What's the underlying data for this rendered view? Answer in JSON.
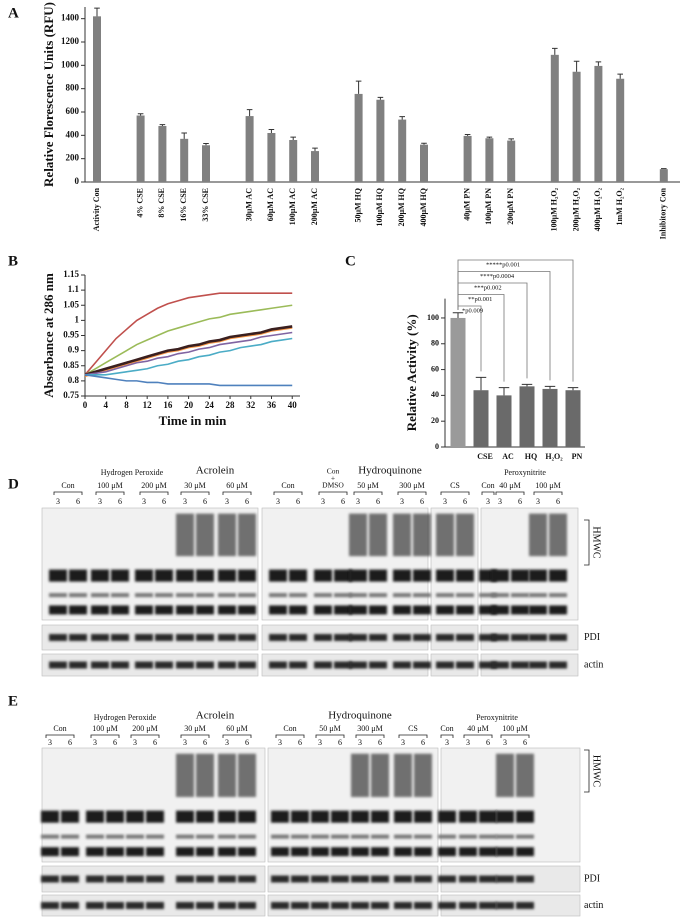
{
  "chart_data": [
    {
      "type": "bar",
      "panel": "A",
      "ylabel": "Relative Florescence Units (RFU)",
      "categories": [
        "Activity Con",
        null,
        "4% CSE",
        "8% CSE",
        "16% CSE",
        "33% CSE",
        null,
        "30μM AC",
        "60μM AC",
        "100μM AC",
        "200μM AC",
        null,
        "50μM HQ",
        "100μM HQ",
        "200μM HQ",
        "400μM HQ",
        null,
        "40μM PN",
        "100μM PN",
        "200μM PN",
        null,
        "100μM H₂O₂",
        "200μM H₂O₂",
        "400μM H₂O₂",
        "1mM H₂O₂",
        null,
        "Inhibitory Con"
      ],
      "values": [
        1420,
        null,
        570,
        480,
        370,
        315,
        null,
        565,
        420,
        360,
        265,
        null,
        755,
        705,
        535,
        320,
        null,
        395,
        375,
        355,
        null,
        1090,
        945,
        995,
        885,
        null,
        110
      ],
      "errors": [
        70,
        null,
        15,
        12,
        50,
        15,
        null,
        55,
        30,
        25,
        25,
        null,
        110,
        20,
        25,
        12,
        null,
        12,
        10,
        15,
        null,
        55,
        90,
        35,
        40,
        null,
        5
      ],
      "color": "#808080",
      "ylim": [
        0,
        1500
      ],
      "yticks": [
        0,
        200,
        400,
        600,
        800,
        1000,
        1200,
        1400
      ]
    },
    {
      "type": "line",
      "panel": "B",
      "xlabel": "Time in min",
      "ylabel": "Absorbance at 286 nm",
      "x": [
        0,
        2,
        4,
        6,
        8,
        10,
        12,
        14,
        16,
        18,
        20,
        22,
        24,
        26,
        28,
        30,
        32,
        34,
        36,
        38,
        40
      ],
      "series": [
        {
          "color": "#c0504d",
          "values": [
            0.82,
            0.86,
            0.9,
            0.94,
            0.97,
            1.0,
            1.02,
            1.04,
            1.055,
            1.065,
            1.075,
            1.08,
            1.085,
            1.09,
            1.09,
            1.09,
            1.09,
            1.09,
            1.09,
            1.09,
            1.09
          ]
        },
        {
          "color": "#9bbb59",
          "values": [
            0.82,
            0.84,
            0.86,
            0.88,
            0.9,
            0.92,
            0.935,
            0.95,
            0.965,
            0.975,
            0.985,
            0.995,
            1.005,
            1.01,
            1.02,
            1.025,
            1.03,
            1.035,
            1.04,
            1.045,
            1.05
          ]
        },
        {
          "color": "#f79646",
          "values": [
            0.815,
            0.825,
            0.835,
            0.845,
            0.855,
            0.865,
            0.875,
            0.885,
            0.895,
            0.9,
            0.91,
            0.915,
            0.925,
            0.93,
            0.94,
            0.945,
            0.95,
            0.955,
            0.965,
            0.97,
            0.975
          ]
        },
        {
          "color": "#3a1f1f",
          "values": [
            0.82,
            0.83,
            0.84,
            0.85,
            0.86,
            0.87,
            0.88,
            0.89,
            0.9,
            0.905,
            0.915,
            0.92,
            0.93,
            0.935,
            0.945,
            0.95,
            0.955,
            0.96,
            0.97,
            0.975,
            0.98
          ]
        },
        {
          "color": "#8064a2",
          "values": [
            0.82,
            0.825,
            0.83,
            0.84,
            0.85,
            0.86,
            0.865,
            0.875,
            0.88,
            0.89,
            0.895,
            0.905,
            0.91,
            0.92,
            0.925,
            0.93,
            0.935,
            0.945,
            0.95,
            0.955,
            0.96
          ]
        },
        {
          "color": "#4bacc6",
          "values": [
            0.82,
            0.82,
            0.82,
            0.825,
            0.83,
            0.835,
            0.84,
            0.85,
            0.855,
            0.865,
            0.87,
            0.88,
            0.885,
            0.895,
            0.9,
            0.91,
            0.915,
            0.92,
            0.93,
            0.935,
            0.94
          ]
        },
        {
          "color": "#4f81bd",
          "values": [
            0.82,
            0.815,
            0.81,
            0.805,
            0.8,
            0.8,
            0.795,
            0.795,
            0.79,
            0.79,
            0.79,
            0.79,
            0.79,
            0.785,
            0.785,
            0.785,
            0.785,
            0.785,
            0.785,
            0.785,
            0.785
          ]
        }
      ],
      "xlim": [
        0,
        41.5
      ],
      "xticks": [
        0,
        4,
        8,
        12,
        16,
        20,
        24,
        28,
        32,
        36,
        40
      ],
      "ylim": [
        0.75,
        1.15
      ],
      "yticks": [
        0.75,
        0.8,
        0.85,
        0.9,
        0.95,
        1,
        1.05,
        1.1,
        1.15
      ]
    },
    {
      "type": "bar",
      "panel": "C",
      "ylabel": "Relative Activity (%)",
      "categories": [
        null,
        "CSE",
        "AC",
        "HQ",
        "H₂O₂",
        "PN"
      ],
      "values": [
        100,
        44,
        40,
        47,
        45,
        44
      ],
      "errors": [
        4,
        10,
        6,
        1.5,
        2,
        2
      ],
      "colors": [
        "#9a9a9a",
        "#6a6a6a",
        "#6a6a6a",
        "#6a6a6a",
        "#6a6a6a",
        "#6a6a6a"
      ],
      "annotations": [
        "*p0.009",
        "**p0.001",
        "***p0.002",
        "****p0.0004",
        "*****p0.001"
      ],
      "ylim": [
        0,
        115
      ],
      "yticks": [
        0,
        20,
        40,
        60,
        80,
        100
      ]
    }
  ],
  "blots": [
    {
      "panel": "D",
      "headers": [
        "Hydrogen Peroxide",
        "Acrolein",
        "Hydroquinone",
        "Peroxynitrite"
      ],
      "groups": [
        {
          "label": "Con",
          "lanes": [
            "3",
            "6"
          ]
        },
        {
          "label": "100 μM",
          "lanes": [
            "3",
            "6"
          ]
        },
        {
          "label": "200 μM",
          "lanes": [
            "3",
            "6"
          ]
        },
        {
          "label": "30 μM",
          "lanes": [
            "3",
            "6"
          ]
        },
        {
          "label": "60 μM",
          "lanes": [
            "3",
            "6"
          ]
        },
        {
          "label": "Con",
          "lanes": [
            "3",
            "6"
          ]
        },
        {
          "label": [
            "Con",
            "+",
            "DMSO"
          ],
          "lanes": [
            "3",
            "6"
          ]
        },
        {
          "label": "50 μM",
          "lanes": [
            "3",
            "6"
          ]
        },
        {
          "label": "300 μM",
          "lanes": [
            "3",
            "6"
          ]
        },
        {
          "label": "CS",
          "lanes": [
            "3",
            "6"
          ]
        },
        {
          "label": "Con",
          "lanes": [
            "3"
          ]
        },
        {
          "label": "40 μM",
          "lanes": [
            "3",
            "6"
          ]
        },
        {
          "label": "100 μM",
          "lanes": [
            "3",
            "6"
          ]
        }
      ],
      "rows": [
        "HMWC",
        "PDI",
        "actin"
      ]
    },
    {
      "panel": "E",
      "headers": [
        "Hydrogen Peroxide",
        "Acrolein",
        "Hydroquinone",
        "Peroxynitrite"
      ],
      "groups": [
        {
          "label": "Con",
          "lanes": [
            "3",
            "6"
          ]
        },
        {
          "label": "100 μM",
          "lanes": [
            "3",
            "6"
          ]
        },
        {
          "label": "200 μM",
          "lanes": [
            "3",
            "6"
          ]
        },
        {
          "label": "30 μM",
          "lanes": [
            "3",
            "6"
          ]
        },
        {
          "label": "60 μM",
          "lanes": [
            "3",
            "6"
          ]
        },
        {
          "label": "Con",
          "lanes": [
            "3",
            "6"
          ]
        },
        {
          "label": "50 μM",
          "lanes": [
            "3",
            "6"
          ]
        },
        {
          "label": "300 μM",
          "lanes": [
            "3",
            "6"
          ]
        },
        {
          "label": "CS",
          "lanes": [
            "3",
            "6"
          ]
        },
        {
          "label": "Con",
          "lanes": [
            "3"
          ]
        },
        {
          "label": "40 μM",
          "lanes": [
            "3",
            "6"
          ]
        },
        {
          "label": "100 μM",
          "lanes": [
            "3",
            "6"
          ]
        }
      ],
      "rows": [
        "HMWC",
        "PDI",
        "actin"
      ]
    }
  ]
}
